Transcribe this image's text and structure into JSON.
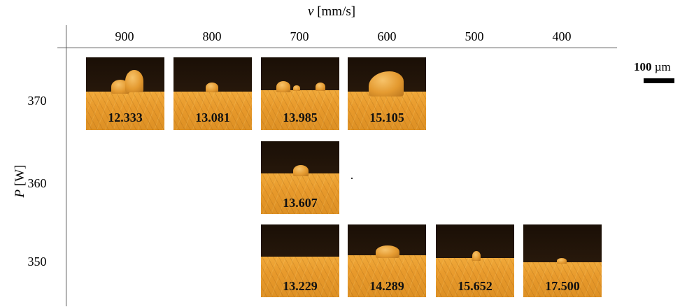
{
  "axis_top": {
    "symbol": "v",
    "unit": "[mm/s]"
  },
  "axis_left": {
    "symbol": "P",
    "unit": "[W]"
  },
  "velocities": [
    "900",
    "800",
    "700",
    "600",
    "500",
    "400"
  ],
  "powers": [
    "370",
    "360",
    "350"
  ],
  "scale_bar": {
    "value": "100",
    "unit": "µm"
  },
  "panels": [
    {
      "power": "370",
      "velocity": "900",
      "value": "12.333"
    },
    {
      "power": "370",
      "velocity": "800",
      "value": "13.081"
    },
    {
      "power": "370",
      "velocity": "700",
      "value": "13.985"
    },
    {
      "power": "370",
      "velocity": "600",
      "value": "15.105"
    },
    {
      "power": "360",
      "velocity": "700",
      "value": "13.607"
    },
    {
      "power": "350",
      "velocity": "700",
      "value": "13.229"
    },
    {
      "power": "350",
      "velocity": "600",
      "value": "14.289"
    },
    {
      "power": "350",
      "velocity": "500",
      "value": "15.652"
    },
    {
      "power": "350",
      "velocity": "400",
      "value": "17.500"
    }
  ]
}
